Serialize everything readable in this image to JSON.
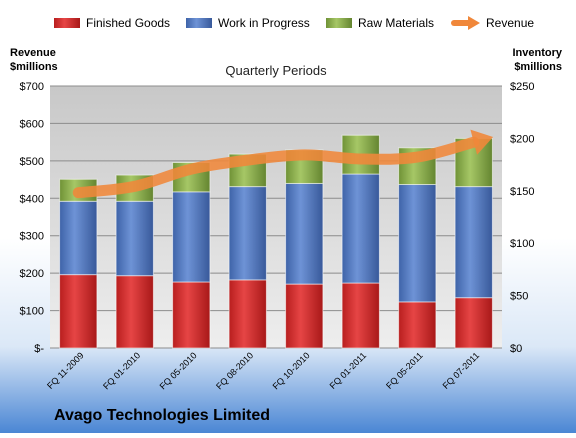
{
  "chart_data": {
    "type": "stacked-bar-with-line",
    "title": "Quarterly Periods",
    "footer_title": "Avago Technologies Limited",
    "left_axis_label": [
      "Revenue",
      "$millions"
    ],
    "right_axis_label": [
      "Inventory",
      "$millions"
    ],
    "left_axis": {
      "min": 0,
      "max": 700,
      "step": 100,
      "tick_labels": [
        "$-",
        "$100",
        "$200",
        "$300",
        "$400",
        "$500",
        "$600",
        "$700"
      ]
    },
    "right_axis": {
      "min": 0,
      "max": 250,
      "step": 50,
      "tick_labels": [
        "$0",
        "$50",
        "$100",
        "$150",
        "$200",
        "$250"
      ]
    },
    "categories": [
      "FQ 11-2009",
      "FQ 01-2010",
      "FQ 05-2010",
      "FQ 08-2010",
      "FQ 10-2010",
      "FQ 01-2011",
      "FQ 05-2011",
      "FQ 07-2011"
    ],
    "series": [
      {
        "name": "Finished Goods",
        "axis": "right",
        "color": "#d42a2a",
        "values": [
          70,
          69,
          63,
          65,
          61,
          62,
          44,
          48
        ]
      },
      {
        "name": "Work in Progress",
        "axis": "right",
        "color": "#4f78c2",
        "values": [
          70,
          71,
          86,
          89,
          96,
          104,
          112,
          106
        ]
      },
      {
        "name": "Raw Materials",
        "axis": "right",
        "color": "#8cb04a",
        "values": [
          21,
          25,
          28,
          31,
          32,
          37,
          35,
          46
        ]
      },
      {
        "name": "Revenue",
        "axis": "left",
        "type": "line",
        "color": "#f0873a",
        "values": [
          415,
          432,
          478,
          502,
          516,
          505,
          510,
          550
        ]
      }
    ],
    "legend_position": "top",
    "grid": true
  }
}
